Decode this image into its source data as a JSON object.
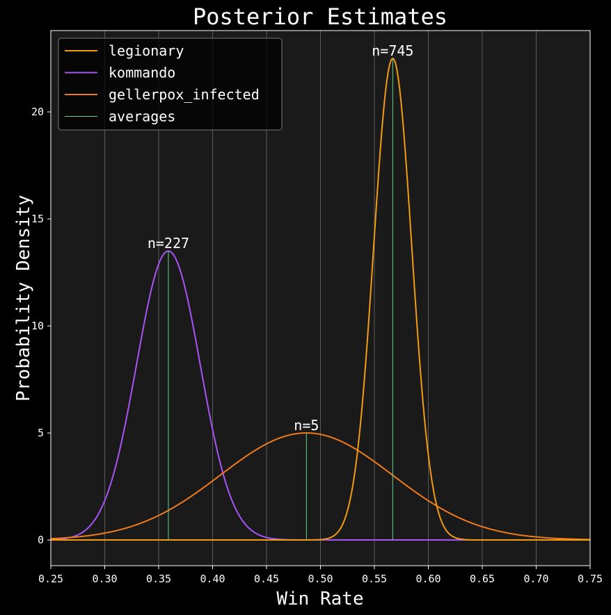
{
  "chart_data": {
    "type": "line",
    "title": "Posterior Estimates",
    "xlabel": "Win Rate",
    "ylabel": "Probability Density",
    "xlim": [
      0.25,
      0.75
    ],
    "ylim": [
      -1.2,
      23.8
    ],
    "xticks": [
      "0.25",
      "0.30",
      "0.35",
      "0.40",
      "0.45",
      "0.50",
      "0.55",
      "0.60",
      "0.65",
      "0.70",
      "0.75"
    ],
    "yticks": [
      "0",
      "5",
      "10",
      "15",
      "20"
    ],
    "grid": "vertical",
    "legend_position": "top-left",
    "background": "#1a1a1a",
    "series": [
      {
        "name": "legionary",
        "color": "#f39c12",
        "mean": 0.567,
        "peak_density": 22.5,
        "n_label": "n=745"
      },
      {
        "name": "kommando",
        "color": "#a855f7",
        "mean": 0.359,
        "peak_density": 13.5,
        "n_label": "n=227"
      },
      {
        "name": "gellerpox_infected",
        "color": "#f07b1c",
        "mean": 0.487,
        "peak_density": 5.0,
        "n_label": "n=5"
      }
    ],
    "averages": {
      "name": "averages",
      "color": "#5fd68a",
      "x": [
        0.567,
        0.359,
        0.487
      ]
    }
  }
}
